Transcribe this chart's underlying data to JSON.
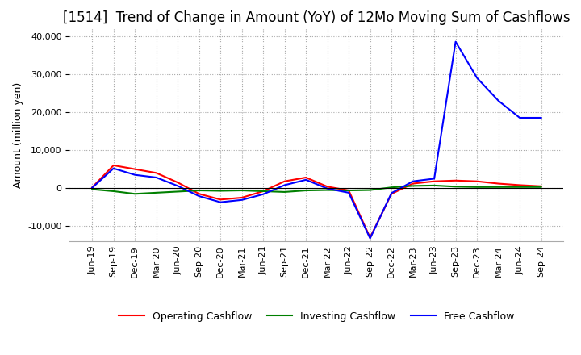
{
  "title": "[1514]  Trend of Change in Amount (YoY) of 12Mo Moving Sum of Cashflows",
  "ylabel": "Amount (million yen)",
  "ylim": [
    -14000,
    42000
  ],
  "yticks": [
    -10000,
    0,
    10000,
    20000,
    30000,
    40000
  ],
  "x_labels": [
    "Jun-19",
    "Sep-19",
    "Dec-19",
    "Mar-20",
    "Jun-20",
    "Sep-20",
    "Dec-20",
    "Mar-21",
    "Jun-21",
    "Sep-21",
    "Dec-21",
    "Mar-22",
    "Jun-22",
    "Sep-22",
    "Dec-22",
    "Mar-23",
    "Jun-23",
    "Sep-23",
    "Dec-23",
    "Mar-24",
    "Jun-24",
    "Sep-24"
  ],
  "operating_cashflow": [
    200,
    6000,
    5000,
    4000,
    1500,
    -1500,
    -3000,
    -2500,
    -800,
    1800,
    2800,
    400,
    -600,
    -13000,
    -1500,
    1200,
    1800,
    2000,
    1800,
    1200,
    800,
    500
  ],
  "investing_cashflow": [
    -300,
    -800,
    -1500,
    -1200,
    -900,
    -600,
    -700,
    -600,
    -800,
    -1000,
    -600,
    -500,
    -600,
    -500,
    200,
    600,
    700,
    400,
    300,
    300,
    300,
    300
  ],
  "free_cashflow": [
    100,
    5200,
    3500,
    2800,
    600,
    -2100,
    -3700,
    -3100,
    -1600,
    800,
    2200,
    -100,
    -1200,
    -13200,
    -1300,
    1800,
    2500,
    38500,
    29000,
    23000,
    18500,
    18500
  ],
  "operating_color": "#ff0000",
  "investing_color": "#008000",
  "free_color": "#0000ff",
  "title_fontsize": 12,
  "axis_fontsize": 9,
  "tick_fontsize": 8,
  "legend_fontsize": 9,
  "background_color": "#ffffff"
}
